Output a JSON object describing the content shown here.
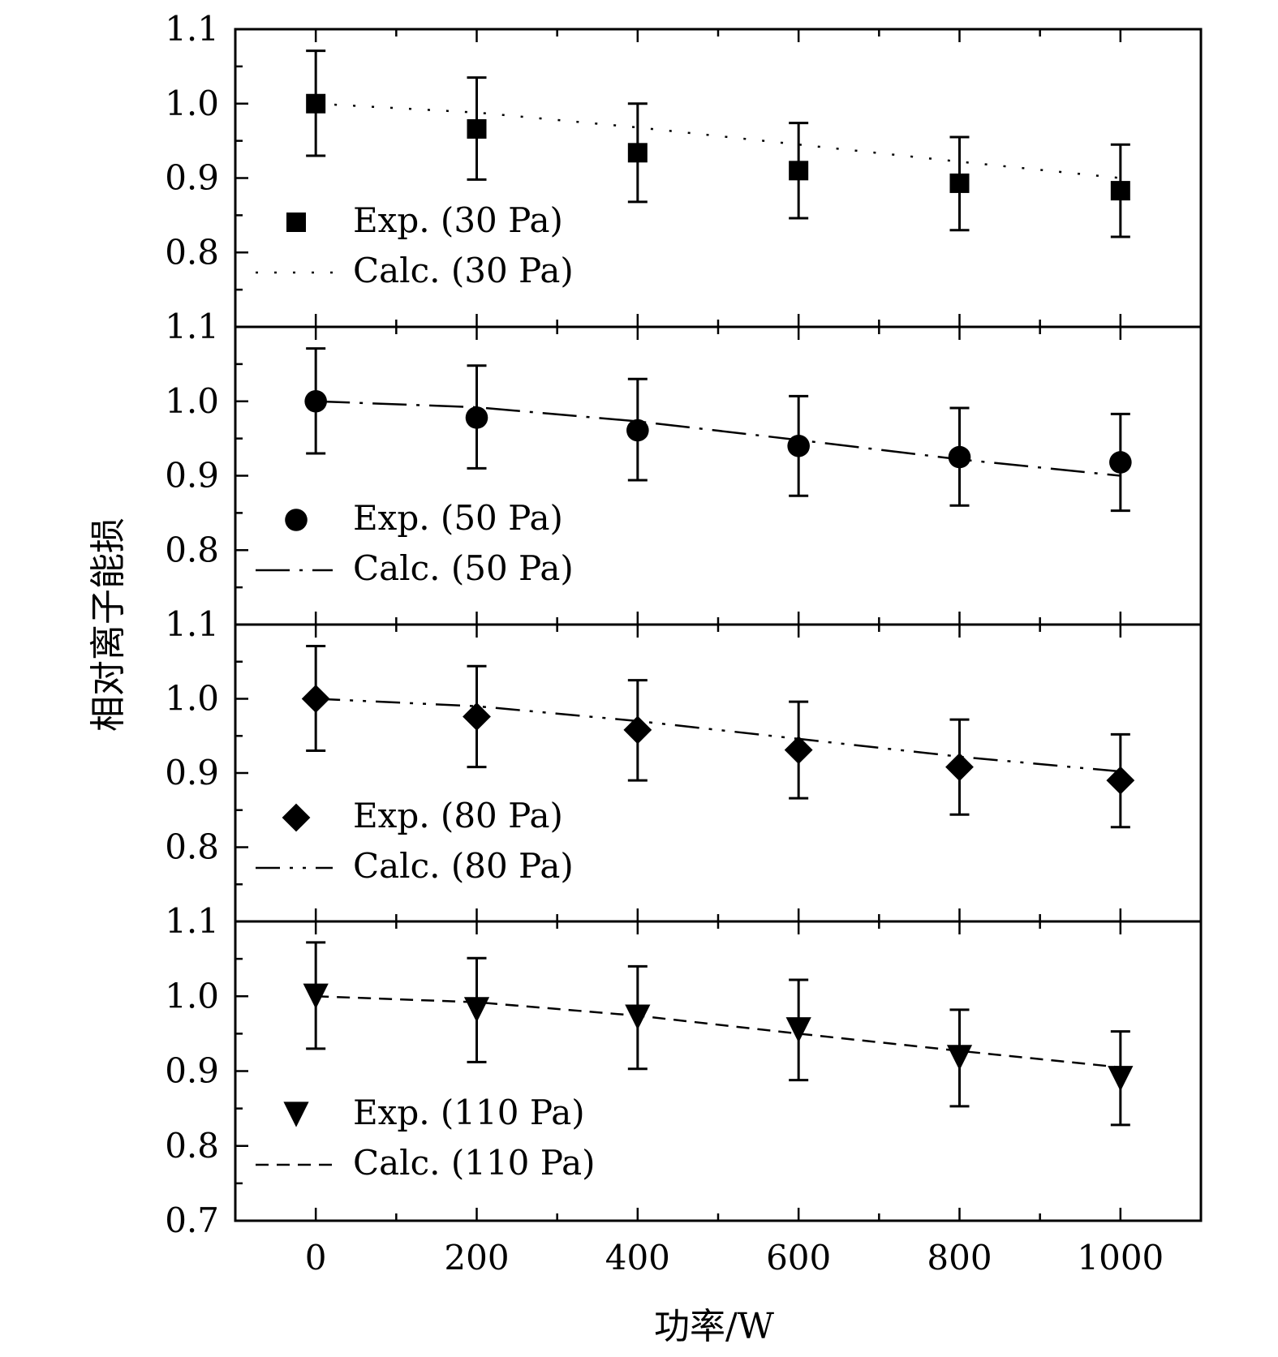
{
  "chart_data": {
    "type": "scatter",
    "xlabel": "功率/W",
    "ylabel": "相对离子能损",
    "xlim": [
      -100,
      1100
    ],
    "x_ticks": [
      0,
      200,
      400,
      600,
      800,
      1000
    ],
    "x_tick_labels": [
      "0",
      "200",
      "400",
      "600",
      "800",
      "1000"
    ],
    "grid": false,
    "legend_placement": "bottom-left of each panel",
    "panels": [
      {
        "ylim": [
          0.7,
          1.1
        ],
        "y_tick_labels": [
          "1.1",
          "1.0",
          "0.9",
          "0.8"
        ],
        "marker": "square",
        "line_style": "dotted",
        "series": [
          {
            "name": "Exp. (30 Pa)",
            "kind": "experimental",
            "x": [
              0,
              200,
              400,
              600,
              800,
              1000
            ],
            "y": [
              1.0,
              0.966,
              0.934,
              0.91,
              0.893,
              0.883
            ],
            "err_low": [
              0.93,
              0.898,
              0.868,
              0.846,
              0.83,
              0.821
            ],
            "err_high": [
              1.071,
              1.035,
              1.0,
              0.974,
              0.955,
              0.945
            ]
          },
          {
            "name": "Calc. (30 Pa)",
            "kind": "calculated",
            "x": [
              0,
              200,
              400,
              600,
              800,
              1000
            ],
            "y": [
              1.0,
              0.988,
              0.968,
              0.945,
              0.922,
              0.9
            ]
          }
        ]
      },
      {
        "ylim": [
          0.7,
          1.1
        ],
        "y_tick_labels": [
          "1.1",
          "1.0",
          "0.9",
          "0.8"
        ],
        "marker": "circle",
        "line_style": "long-dash-dot",
        "series": [
          {
            "name": "Exp. (50 Pa)",
            "kind": "experimental",
            "x": [
              0,
              200,
              400,
              600,
              800,
              1000
            ],
            "y": [
              1.0,
              0.978,
              0.961,
              0.94,
              0.925,
              0.918
            ],
            "err_low": [
              0.93,
              0.91,
              0.894,
              0.873,
              0.86,
              0.853
            ],
            "err_high": [
              1.071,
              1.048,
              1.03,
              1.007,
              0.991,
              0.983
            ]
          },
          {
            "name": "Calc. (50 Pa)",
            "kind": "calculated",
            "x": [
              0,
              200,
              400,
              600,
              800,
              1000
            ],
            "y": [
              1.0,
              0.992,
              0.973,
              0.948,
              0.922,
              0.9
            ]
          }
        ]
      },
      {
        "ylim": [
          0.7,
          1.1
        ],
        "y_tick_labels": [
          "1.1",
          "1.0",
          "0.9",
          "0.8"
        ],
        "marker": "diamond",
        "line_style": "dash-dot-dot",
        "series": [
          {
            "name": "Exp. (80 Pa)",
            "kind": "experimental",
            "x": [
              0,
              200,
              400,
              600,
              800,
              1000
            ],
            "y": [
              1.0,
              0.976,
              0.958,
              0.931,
              0.908,
              0.89
            ],
            "err_low": [
              0.93,
              0.908,
              0.89,
              0.866,
              0.844,
              0.827
            ],
            "err_high": [
              1.071,
              1.044,
              1.025,
              0.996,
              0.972,
              0.952
            ]
          },
          {
            "name": "Calc. (80 Pa)",
            "kind": "calculated",
            "x": [
              0,
              200,
              400,
              600,
              800,
              1000
            ],
            "y": [
              1.0,
              0.99,
              0.97,
              0.946,
              0.922,
              0.902
            ]
          }
        ]
      },
      {
        "ylim": [
          0.7,
          1.1
        ],
        "y_tick_labels": [
          "1.1",
          "1.0",
          "0.9",
          "0.8",
          "0.7"
        ],
        "marker": "triangle-down",
        "line_style": "dashed",
        "series": [
          {
            "name": "Exp. (110 Pa)",
            "kind": "experimental",
            "x": [
              0,
              200,
              400,
              600,
              800,
              1000
            ],
            "y": [
              1.0,
              0.982,
              0.972,
              0.955,
              0.918,
              0.89
            ],
            "err_low": [
              0.93,
              0.912,
              0.903,
              0.888,
              0.853,
              0.828
            ],
            "err_high": [
              1.072,
              1.051,
              1.04,
              1.022,
              0.982,
              0.953
            ]
          },
          {
            "name": "Calc. (110 Pa)",
            "kind": "calculated",
            "x": [
              0,
              200,
              400,
              600,
              800,
              1000
            ],
            "y": [
              1.0,
              0.992,
              0.974,
              0.95,
              0.927,
              0.905
            ]
          }
        ]
      }
    ]
  }
}
